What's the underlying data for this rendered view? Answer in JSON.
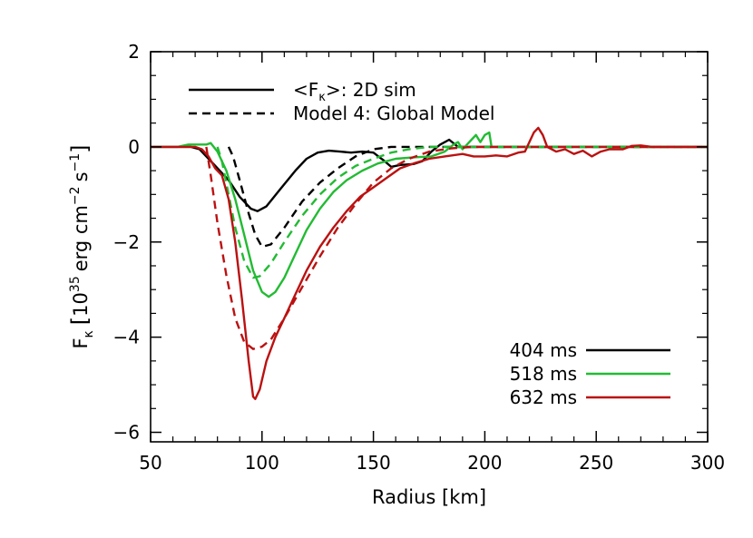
{
  "chart_data": {
    "type": "line",
    "xlabel": "Radius [km]",
    "ylabel": {
      "F": "F",
      "sub": "κ",
      "bracket_open": "[",
      "ten": "10",
      "exp": "35",
      "unit_a": "erg cm",
      "unit_a_exp": "−2",
      "unit_b": "s",
      "unit_b_exp": "−1",
      "bracket_close": "]"
    },
    "xlim": [
      50,
      300
    ],
    "ylim": [
      -6.2,
      2
    ],
    "xticks": [
      50,
      100,
      150,
      200,
      250,
      300
    ],
    "xtick_labels": [
      "50",
      "100",
      "150",
      "200",
      "250",
      "300"
    ],
    "yticks": [
      -6,
      -4,
      -2,
      0,
      2
    ],
    "ytick_labels": [
      "−6",
      "−4",
      "−2",
      "0",
      "2"
    ],
    "linestyle_legend": {
      "placement": "top-left",
      "entries": [
        {
          "style": "solid",
          "label_parts": {
            "open": "<F",
            "sub": "κ",
            "close": ">: 2D sim"
          }
        },
        {
          "style": "dashed",
          "label": "Model 4: Global Model"
        }
      ]
    },
    "time_legend": {
      "placement": "bottom-right",
      "entries": [
        {
          "label": "404 ms",
          "color": "#000000"
        },
        {
          "label": "518 ms",
          "color": "#22bb33"
        },
        {
          "label": "632 ms",
          "color": "#bb1111"
        }
      ]
    },
    "series": [
      {
        "name": "404 ms",
        "style": "solid",
        "color": "#000000",
        "points": [
          [
            50,
            0
          ],
          [
            68,
            0
          ],
          [
            72,
            -0.05
          ],
          [
            76,
            -0.25
          ],
          [
            80,
            -0.45
          ],
          [
            85,
            -0.7
          ],
          [
            90,
            -1.05
          ],
          [
            95,
            -1.3
          ],
          [
            98,
            -1.35
          ],
          [
            102,
            -1.25
          ],
          [
            108,
            -0.9
          ],
          [
            115,
            -0.5
          ],
          [
            120,
            -0.25
          ],
          [
            125,
            -0.12
          ],
          [
            130,
            -0.08
          ],
          [
            135,
            -0.1
          ],
          [
            140,
            -0.12
          ],
          [
            145,
            -0.1
          ],
          [
            150,
            -0.12
          ],
          [
            155,
            -0.3
          ],
          [
            158,
            -0.42
          ],
          [
            162,
            -0.38
          ],
          [
            168,
            -0.36
          ],
          [
            172,
            -0.3
          ],
          [
            176,
            -0.1
          ],
          [
            180,
            0.05
          ],
          [
            184,
            0.15
          ],
          [
            188,
            0
          ],
          [
            195,
            0
          ],
          [
            300,
            0
          ]
        ]
      },
      {
        "name": "404 ms",
        "style": "dashed",
        "color": "#000000",
        "points": [
          [
            85,
            0
          ],
          [
            87,
            -0.2
          ],
          [
            90,
            -0.7
          ],
          [
            94,
            -1.4
          ],
          [
            97,
            -1.85
          ],
          [
            100,
            -2.1
          ],
          [
            104,
            -2.05
          ],
          [
            110,
            -1.7
          ],
          [
            118,
            -1.15
          ],
          [
            126,
            -0.75
          ],
          [
            134,
            -0.45
          ],
          [
            142,
            -0.2
          ],
          [
            150,
            -0.05
          ],
          [
            158,
            0
          ],
          [
            300,
            0
          ]
        ]
      },
      {
        "name": "518 ms",
        "style": "solid",
        "color": "#22bb33",
        "points": [
          [
            50,
            0
          ],
          [
            62,
            0
          ],
          [
            67,
            0.05
          ],
          [
            72,
            0.05
          ],
          [
            75,
            0.05
          ],
          [
            77,
            0.08
          ],
          [
            80,
            -0.1
          ],
          [
            84,
            -0.5
          ],
          [
            88,
            -1.1
          ],
          [
            92,
            -1.85
          ],
          [
            96,
            -2.6
          ],
          [
            100,
            -3.05
          ],
          [
            103,
            -3.15
          ],
          [
            106,
            -3.05
          ],
          [
            110,
            -2.75
          ],
          [
            115,
            -2.25
          ],
          [
            120,
            -1.75
          ],
          [
            126,
            -1.3
          ],
          [
            132,
            -0.95
          ],
          [
            138,
            -0.7
          ],
          [
            145,
            -0.5
          ],
          [
            152,
            -0.35
          ],
          [
            160,
            -0.25
          ],
          [
            168,
            -0.22
          ],
          [
            176,
            -0.2
          ],
          [
            182,
            -0.1
          ],
          [
            186,
            0.05
          ],
          [
            188,
            0.1
          ],
          [
            190,
            -0.05
          ],
          [
            192,
            0.05
          ],
          [
            194,
            0.15
          ],
          [
            196,
            0.25
          ],
          [
            198,
            0.1
          ],
          [
            200,
            0.25
          ],
          [
            202,
            0.3
          ],
          [
            203,
            0
          ],
          [
            210,
            0
          ],
          [
            300,
            0
          ]
        ]
      },
      {
        "name": "518 ms",
        "style": "dashed",
        "color": "#22bb33",
        "points": [
          [
            80,
            0
          ],
          [
            82,
            -0.3
          ],
          [
            85,
            -1.0
          ],
          [
            88,
            -1.7
          ],
          [
            92,
            -2.4
          ],
          [
            96,
            -2.75
          ],
          [
            99,
            -2.72
          ],
          [
            104,
            -2.45
          ],
          [
            110,
            -2.0
          ],
          [
            118,
            -1.45
          ],
          [
            126,
            -1.0
          ],
          [
            134,
            -0.65
          ],
          [
            142,
            -0.4
          ],
          [
            150,
            -0.25
          ],
          [
            158,
            -0.12
          ],
          [
            166,
            -0.05
          ],
          [
            175,
            0
          ],
          [
            300,
            0
          ]
        ]
      },
      {
        "name": "632 ms",
        "style": "solid",
        "color": "#bb1111",
        "points": [
          [
            50,
            0
          ],
          [
            70,
            0
          ],
          [
            73,
            -0.05
          ],
          [
            76,
            -0.2
          ],
          [
            79,
            -0.45
          ],
          [
            82,
            -0.6
          ],
          [
            85,
            -1.1
          ],
          [
            88,
            -2.0
          ],
          [
            91,
            -3.2
          ],
          [
            94,
            -4.5
          ],
          [
            96,
            -5.25
          ],
          [
            97,
            -5.3
          ],
          [
            99,
            -5.1
          ],
          [
            102,
            -4.5
          ],
          [
            106,
            -4.0
          ],
          [
            110,
            -3.6
          ],
          [
            115,
            -3.1
          ],
          [
            120,
            -2.6
          ],
          [
            126,
            -2.1
          ],
          [
            132,
            -1.7
          ],
          [
            138,
            -1.35
          ],
          [
            144,
            -1.05
          ],
          [
            150,
            -0.85
          ],
          [
            156,
            -0.65
          ],
          [
            162,
            -0.45
          ],
          [
            168,
            -0.35
          ],
          [
            175,
            -0.25
          ],
          [
            182,
            -0.2
          ],
          [
            190,
            -0.15
          ],
          [
            195,
            -0.2
          ],
          [
            200,
            -0.2
          ],
          [
            205,
            -0.18
          ],
          [
            210,
            -0.2
          ],
          [
            215,
            -0.12
          ],
          [
            218,
            -0.1
          ],
          [
            220,
            0.1
          ],
          [
            222,
            0.3
          ],
          [
            224,
            0.4
          ],
          [
            226,
            0.25
          ],
          [
            228,
            0
          ],
          [
            232,
            -0.1
          ],
          [
            236,
            -0.05
          ],
          [
            240,
            -0.15
          ],
          [
            244,
            -0.08
          ],
          [
            248,
            -0.2
          ],
          [
            252,
            -0.1
          ],
          [
            256,
            -0.05
          ],
          [
            262,
            -0.05
          ],
          [
            266,
            0.02
          ],
          [
            270,
            0.03
          ],
          [
            275,
            0
          ],
          [
            300,
            0
          ]
        ]
      },
      {
        "name": "632 ms",
        "style": "dashed",
        "color": "#bb1111",
        "points": [
          [
            75,
            0
          ],
          [
            77,
            -0.6
          ],
          [
            80,
            -1.6
          ],
          [
            84,
            -2.7
          ],
          [
            88,
            -3.6
          ],
          [
            92,
            -4.1
          ],
          [
            96,
            -4.25
          ],
          [
            100,
            -4.2
          ],
          [
            104,
            -4.05
          ],
          [
            110,
            -3.6
          ],
          [
            118,
            -2.95
          ],
          [
            126,
            -2.3
          ],
          [
            134,
            -1.7
          ],
          [
            142,
            -1.2
          ],
          [
            150,
            -0.75
          ],
          [
            158,
            -0.45
          ],
          [
            166,
            -0.25
          ],
          [
            175,
            -0.1
          ],
          [
            185,
            -0.03
          ],
          [
            195,
            0
          ],
          [
            300,
            0
          ]
        ]
      }
    ]
  }
}
